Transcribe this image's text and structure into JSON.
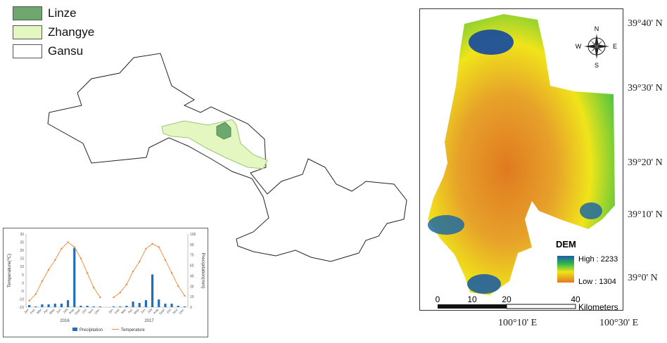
{
  "legend": {
    "items": [
      {
        "label": "Linze",
        "color": "#6fa86f"
      },
      {
        "label": "Zhangye",
        "color": "#e4f7c0"
      },
      {
        "label": "Gansu",
        "color": "#ffffff"
      }
    ]
  },
  "dem_map": {
    "compass": {
      "n": "N",
      "s": "S",
      "e": "E",
      "w": "W"
    },
    "legend_title": "DEM",
    "legend_high": "High : 2233",
    "legend_low": "Low : 1304",
    "scale_ticks": [
      "0",
      "10",
      "20",
      "40"
    ],
    "scale_unit": "Kilometers",
    "lat_labels": [
      "39°40' N",
      "39°30' N",
      "39°20' N",
      "39°10' N",
      "39°0' N"
    ],
    "lon_labels": [
      "100°10' E",
      "100°30' E"
    ],
    "colors": {
      "high": "#1a5fa8",
      "mid": "#f0e41a",
      "low": "#e07a20",
      "green": "#2fb84a"
    }
  },
  "chart_data": {
    "type": "bar",
    "categories": [
      "Jan.",
      "Feb.",
      "Mar.",
      "Apr.",
      "May.",
      "Jun.",
      "July",
      "Aug.",
      "Sept.",
      "Oct.",
      "Nov.",
      "Dec.",
      "Jan.",
      "Feb.",
      "Mar.",
      "Apr.",
      "May.",
      "Jun.",
      "July",
      "Aug.",
      "Sept.",
      "Oct.",
      "Nov.",
      "Dec."
    ],
    "groups": [
      "2016",
      "2017"
    ],
    "series": [
      {
        "name": "Precipitation",
        "axis": "right",
        "kind": "bar",
        "color": "#1f6fbf",
        "values": [
          3,
          1,
          4,
          4,
          5,
          5,
          10,
          85,
          2,
          2,
          1,
          1,
          1,
          1,
          2,
          8,
          6,
          10,
          47,
          11,
          5,
          5,
          2,
          1
        ]
      },
      {
        "name": "Temperature",
        "axis": "left",
        "kind": "line",
        "color": "#f0883a",
        "values": [
          -11,
          -7,
          1,
          8,
          14,
          21,
          25,
          22,
          15,
          6,
          -3,
          -9,
          -9,
          -6,
          -1,
          7,
          13,
          21,
          24,
          22,
          14,
          6,
          -2,
          -8
        ]
      }
    ],
    "ylabel": "Temperature(℃)",
    "y2label": "Precipitation(mm)",
    "ylim": [
      -15,
      30
    ],
    "y2lim": [
      0,
      105
    ],
    "yticks": [
      "-15",
      "-10",
      "-5",
      "0",
      "5",
      "10",
      "15",
      "20",
      "25",
      "30"
    ],
    "y2ticks": [
      "0",
      "15",
      "30",
      "45",
      "60",
      "75",
      "90",
      "105"
    ],
    "legend_position": "bottom"
  }
}
